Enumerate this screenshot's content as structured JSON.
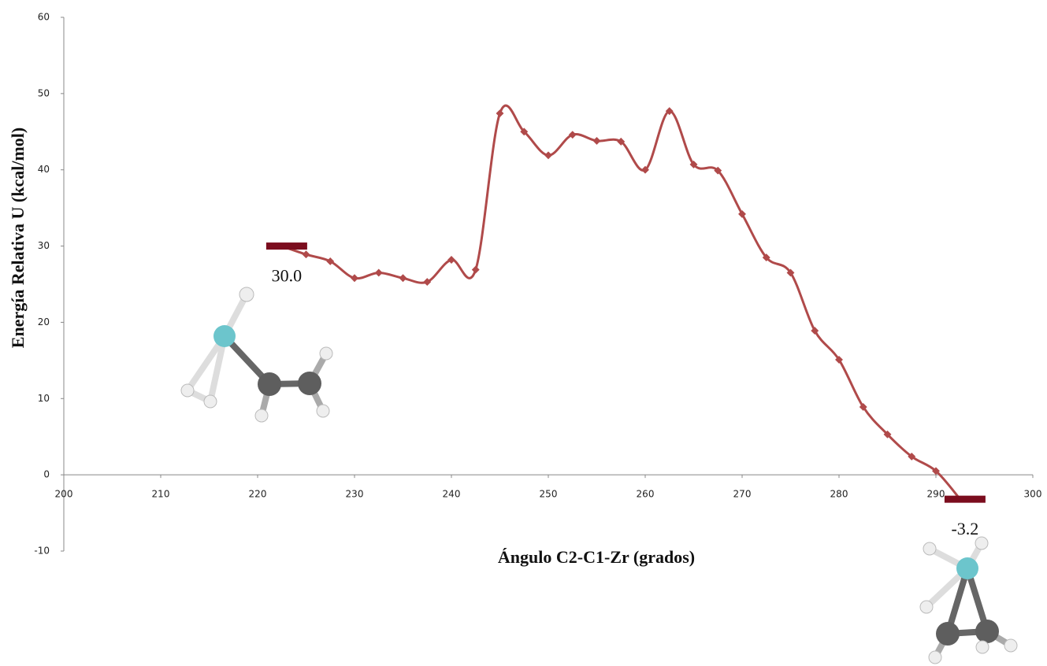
{
  "chart_data": {
    "type": "line",
    "x_label": "Ángulo C2-C1-Zr (grados)",
    "y_label": "Energía Relativa U (kcal/mol)",
    "xlim": [
      200,
      300
    ],
    "xticks": [
      200,
      210,
      220,
      230,
      240,
      250,
      260,
      270,
      280,
      290,
      300
    ],
    "ylim": [
      -10,
      60
    ],
    "yticks": [
      -10,
      0,
      10,
      20,
      30,
      40,
      50,
      60
    ],
    "series": [
      {
        "color": "#b04a4a",
        "x": [
          222.5,
          225,
          227.5,
          230,
          232.5,
          235,
          237.5,
          240,
          242.5,
          245,
          247.5,
          250,
          252.5,
          255,
          257.5,
          260,
          262.5,
          265,
          267.5,
          270,
          272.5,
          275,
          277.5,
          280,
          282.5,
          285,
          287.5,
          290,
          292.5
        ],
        "values": [
          30.0,
          28.9,
          28.0,
          25.8,
          26.5,
          25.8,
          25.3,
          28.2,
          26.9,
          47.4,
          45.0,
          41.9,
          44.6,
          43.8,
          43.7,
          40.0,
          47.7,
          40.7,
          39.9,
          34.2,
          28.5,
          26.5,
          18.9,
          15.1,
          8.9,
          5.3,
          2.4,
          0.5,
          -3.2
        ]
      },
      {
        "color": "#7b0d1e",
        "x": [
          223,
          293
        ],
        "values": [
          30.0,
          -3.2
        ],
        "value_labels": [
          "30.0",
          "-3.2"
        ]
      }
    ]
  }
}
